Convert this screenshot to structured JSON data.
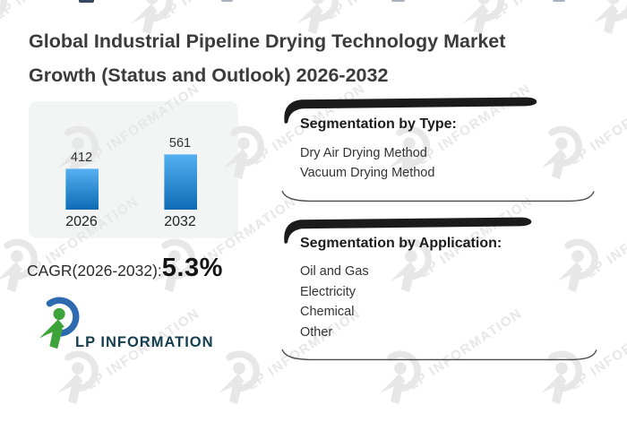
{
  "title": {
    "line1": "Global Industrial Pipeline Drying Technology Market",
    "line2": "Growth (Status and Outlook) 2026-2032"
  },
  "chart_data": {
    "type": "bar",
    "categories": [
      "2026",
      "2032"
    ],
    "values": [
      412,
      561
    ],
    "ylim": [
      0,
      600
    ],
    "grid": false,
    "value_labels": true,
    "bar_color_top": "#55b1f1",
    "bar_color_bottom": "#0f6bb4",
    "card_background": "#f3f4f4"
  },
  "cagr": {
    "label": "CAGR(2026-2032):",
    "value": "5.3%"
  },
  "segmentation_type": {
    "title": "Segmentation by Type:",
    "items": [
      "Dry Air Drying Method",
      "Vacuum Drying Method"
    ]
  },
  "segmentation_application": {
    "title": "Segmentation by Application:",
    "items": [
      "Oil and Gas",
      "Electricity",
      "Chemical",
      "Other"
    ]
  },
  "logo": {
    "text": "LP INFORMATION",
    "green": "#3fa33c",
    "blue": "#2d6ab0",
    "text_color": "#143e50"
  },
  "watermark": {
    "text": "LP INFORMATION",
    "color": "#e7e7e7"
  }
}
